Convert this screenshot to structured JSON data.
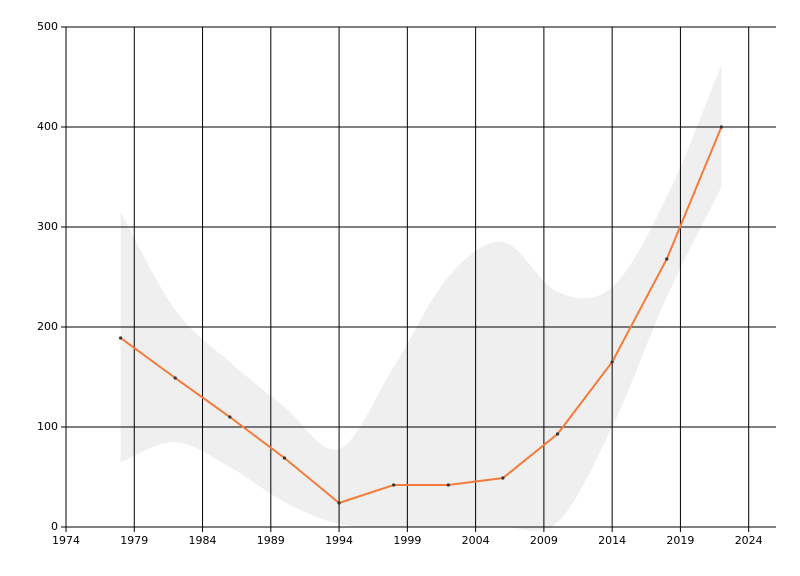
{
  "chart_data": {
    "type": "line",
    "x": [
      1978,
      1982,
      1986,
      1990,
      1994,
      1998,
      2002,
      2006,
      2010,
      2014,
      2018,
      2022
    ],
    "values": [
      189,
      149,
      110,
      69,
      24,
      42,
      42,
      49,
      93,
      165,
      268,
      400
    ],
    "band_upper": [
      315,
      217,
      165,
      120,
      78,
      160,
      250,
      285,
      235,
      240,
      330,
      462
    ],
    "band_lower": [
      65,
      85,
      60,
      25,
      3,
      0,
      0,
      0,
      5,
      100,
      230,
      340
    ],
    "color": "#f47b3a",
    "band_color": "#efefef",
    "marker_color": "#333333",
    "xlim": [
      1974,
      2026
    ],
    "xticks": [
      1974,
      1979,
      1984,
      1989,
      1994,
      1999,
      2004,
      2009,
      2014,
      2019,
      2024
    ],
    "ylim": [
      0,
      500
    ],
    "yticks": [
      0,
      100,
      200,
      300,
      400,
      500
    ],
    "grid": true
  }
}
